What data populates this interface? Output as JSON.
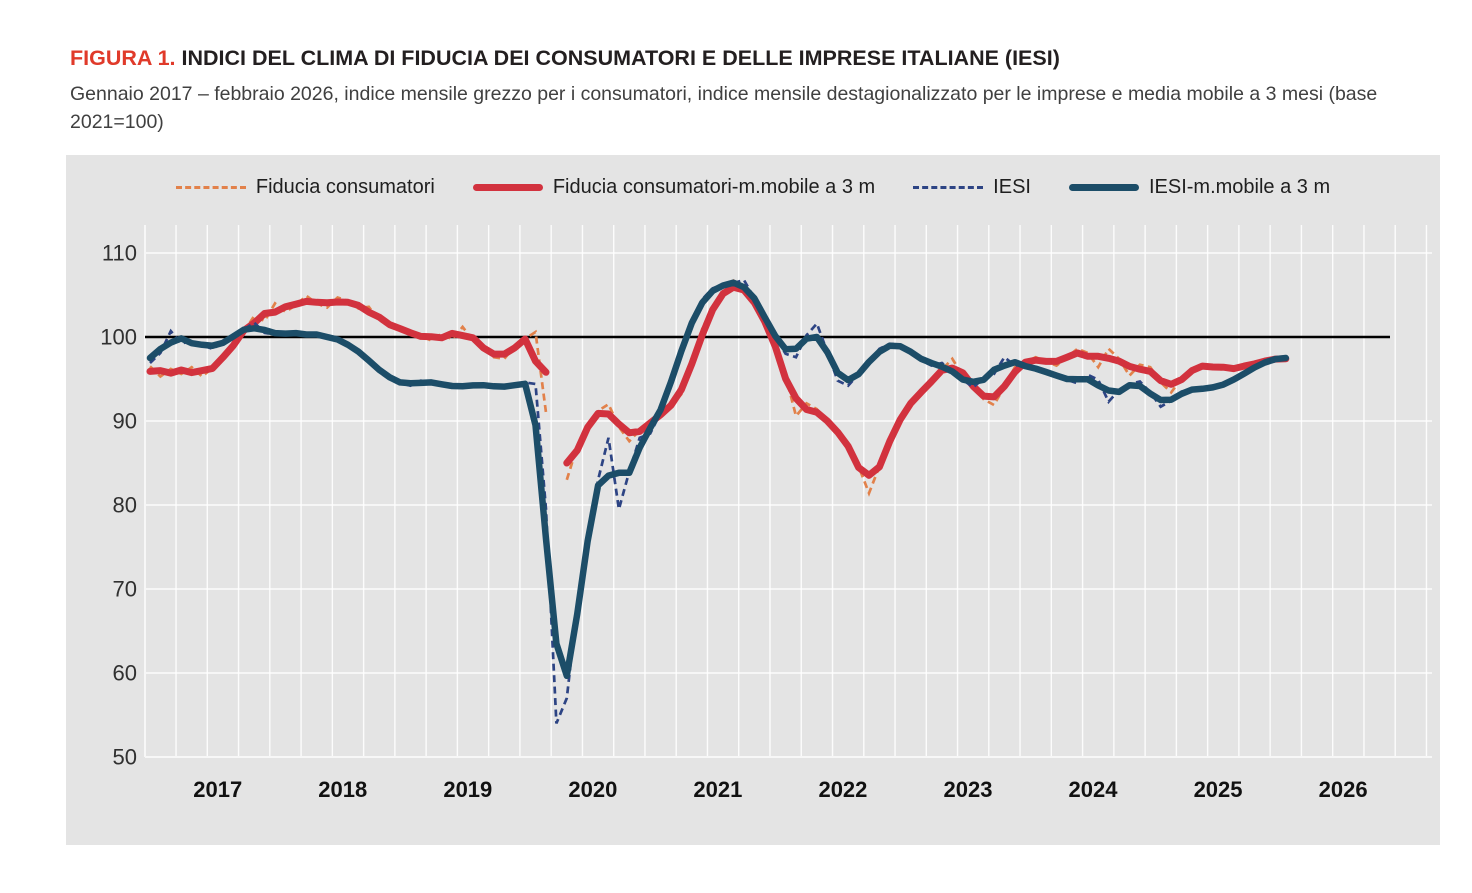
{
  "figure": {
    "label": "FIGURA 1.",
    "title": "INDICI DEL CLIMA DI FIDUCIA DEI CONSUMATORI E DELLE IMPRESE ITALIANE (IESI)",
    "subtitle": "Gennaio 2017 – febbraio 2026, indice mensile grezzo per i consumatori, indice mensile destagionalizzato per le imprese e media mobile a 3 mesi (base 2021=100)"
  },
  "colors": {
    "panel_background": "#e4e4e4",
    "gridline": "#ffffff",
    "baseline_100": "#000000",
    "consumer_raw": "#e2814a",
    "consumer_ma": "#d2323e",
    "iesi_raw": "#2d4484",
    "iesi_ma": "#1c4d68",
    "figure_label_red": "#e03a2a",
    "axis_text": "#303030",
    "year_text": "#111111"
  },
  "legend": [
    {
      "label": "Fiducia consumatori",
      "style": "dashed",
      "color": "#e2814a"
    },
    {
      "label": "Fiducia consumatori-m.mobile a 3 m",
      "style": "solid-thick",
      "color": "#d2323e"
    },
    {
      "label": "IESI",
      "style": "dashed",
      "color": "#2d4484"
    },
    {
      "label": "IESI-m.mobile a 3 m",
      "style": "solid-thick",
      "color": "#1c4d68"
    }
  ],
  "chart_data": {
    "type": "line",
    "x_start": "2017-01",
    "x_end": "2026-02",
    "frequency": "monthly",
    "x_tick_labels": [
      "2017",
      "2018",
      "2019",
      "2020",
      "2021",
      "2022",
      "2023",
      "2024",
      "2025",
      "2026"
    ],
    "y_ticks": [
      50,
      60,
      70,
      80,
      90,
      100,
      110
    ],
    "ylim": [
      50,
      113
    ],
    "baseline": 100,
    "grid": "quarterly vertical and decade horizontal white gridlines on gray panel",
    "legend_position": "top",
    "data_gap_note": "Consumer series has no value for April 2020 (survey not conducted): gap in the line",
    "ma_window": 3,
    "ma_type": "centered moving average, partial window at series edges and around the gap",
    "series": [
      {
        "name": "Fiducia consumatori",
        "style": "dashed",
        "color": "#e2814a",
        "values": [
          96.5,
          95.3,
          96.2,
          95.6,
          96.4,
          95.3,
          96.3,
          97.2,
          99.2,
          100.6,
          102.5,
          101.9,
          104.0,
          103.0,
          103.8,
          104.9,
          104.0,
          103.5,
          104.7,
          104.3,
          103.4,
          103.6,
          101.9,
          101.6,
          100.9,
          100.5,
          100.1,
          99.6,
          100.4,
          99.7,
          101.2,
          99.6,
          98.9,
          97.6,
          97.4,
          98.9,
          99.8,
          100.6,
          91.0,
          null,
          83.0,
          87.0,
          89.5,
          91.2,
          92.0,
          89.3,
          87.6,
          88.9,
          89.8,
          90.6,
          91.8,
          93.2,
          96.2,
          101.0,
          103.6,
          105.2,
          106.7,
          105.9,
          104.2,
          102.2,
          99.1,
          95.4,
          90.6,
          92.1,
          91.4,
          89.6,
          89.0,
          87.4,
          84.6,
          81.4,
          84.6,
          87.6,
          90.6,
          92.3,
          93.4,
          94.6,
          96.1,
          97.4,
          95.4,
          94.4,
          92.6,
          91.9,
          94.1,
          96.4,
          97.0,
          97.6,
          97.1,
          96.6,
          97.6,
          98.6,
          98.1,
          96.4,
          98.6,
          97.4,
          95.4,
          96.7,
          96.4,
          94.6,
          93.4,
          95.1,
          96.3,
          96.6,
          96.7,
          96.0,
          96.5,
          96.2,
          96.9,
          97.3,
          97.2,
          97.6
        ]
      },
      {
        "name": "Fiducia consumatori-m.mobile a 3 m",
        "style": "solid-thick",
        "color": "#d2323e",
        "derived": true,
        "derived_from": "Fiducia consumatori",
        "window": 3
      },
      {
        "name": "IESI",
        "style": "dashed",
        "color": "#2d4484",
        "values": [
          96.9,
          98.1,
          100.7,
          99.2,
          99.6,
          99.0,
          98.6,
          99.3,
          100.0,
          100.9,
          101.7,
          100.5,
          100.3,
          100.6,
          100.3,
          100.5,
          100.1,
          100.3,
          99.6,
          99.2,
          98.4,
          97.2,
          96.0,
          95.1,
          94.5,
          94.2,
          94.8,
          94.6,
          94.4,
          94.1,
          94.0,
          94.3,
          94.4,
          94.1,
          93.9,
          94.3,
          94.6,
          94.4,
          79.5,
          54.0,
          57.0,
          68.0,
          76.0,
          83.0,
          88.0,
          79.5,
          84.0,
          88.0,
          88.5,
          91.0,
          94.5,
          98.5,
          102.0,
          104.5,
          105.8,
          106.2,
          106.4,
          106.8,
          104.6,
          102.4,
          100.0,
          98.0,
          97.6,
          100.2,
          101.6,
          98.2,
          94.8,
          94.2,
          95.6,
          96.9,
          98.6,
          99.2,
          99.1,
          98.4,
          97.2,
          96.6,
          96.9,
          95.9,
          94.9,
          94.0,
          95.1,
          95.6,
          97.6,
          96.6,
          96.8,
          96.2,
          95.7,
          95.6,
          94.9,
          94.5,
          95.5,
          94.9,
          92.3,
          93.7,
          94.4,
          94.7,
          93.4,
          91.7,
          92.4,
          93.5,
          93.8,
          93.9,
          93.8,
          94.3,
          94.9,
          95.6,
          96.4,
          97.1,
          97.4,
          97.6
        ]
      },
      {
        "name": "IESI-m.mobile a 3 m",
        "style": "solid-thick",
        "color": "#1c4d68",
        "derived": true,
        "derived_from": "IESI",
        "window": 3
      }
    ]
  }
}
